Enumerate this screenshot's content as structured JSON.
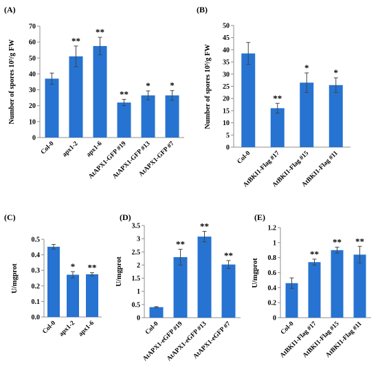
{
  "figure": {
    "bar_color": "#2673d1",
    "axis_color": "#8c8c8c",
    "error_color": "#444444"
  },
  "chart_data": [
    {
      "label": "(A)",
      "type": "bar",
      "ylabel": "Number of spores 10⁵/g FW",
      "ylim": [
        0,
        70
      ],
      "yticks": [
        0,
        10,
        20,
        30,
        40,
        50,
        60,
        70
      ],
      "tick_decimals": 0,
      "categories": [
        "Col-0",
        "apx1-2",
        "apx1-6",
        "AtAPX1-GFP #19",
        "AtAPX1-GFP #13",
        "AtAPX1-GFP #7"
      ],
      "values": [
        37,
        51,
        57.5,
        22,
        26.5,
        26.5
      ],
      "errors": [
        3.5,
        6.5,
        5.5,
        2.0,
        2.8,
        3.0
      ],
      "significance": [
        "",
        "**",
        "**",
        "**",
        "*",
        "*"
      ]
    },
    {
      "label": "(B)",
      "type": "bar",
      "ylabel": "Number of spores 10⁵/g FW",
      "ylim": [
        0,
        50
      ],
      "yticks": [
        0,
        5,
        10,
        15,
        20,
        25,
        30,
        35,
        40,
        45,
        50
      ],
      "tick_decimals": 0,
      "categories": [
        "Col-0",
        "AtBKI1-Flag #17",
        "AtBKI1-Flag #15",
        "AtBKI1-Flag #11"
      ],
      "values": [
        38.5,
        16,
        26.5,
        25.5
      ],
      "errors": [
        4.5,
        2.0,
        4.0,
        3.0
      ],
      "significance": [
        "",
        "**",
        "*",
        "*"
      ]
    },
    {
      "label": "(C)",
      "type": "bar",
      "ylabel": "U/mgprot",
      "ylim": [
        0,
        0.5
      ],
      "yticks": [
        0,
        0.1,
        0.2,
        0.3,
        0.4,
        0.5
      ],
      "tick_decimals": 1,
      "categories": [
        "Col-0",
        "apx1-2",
        "apx1-6"
      ],
      "values": [
        0.452,
        0.272,
        0.275
      ],
      "errors": [
        0.015,
        0.02,
        0.01
      ],
      "significance": [
        "",
        "*",
        "**"
      ]
    },
    {
      "label": "(D)",
      "type": "bar",
      "ylabel": "U/mgprot",
      "ylim": [
        0,
        3.5
      ],
      "yticks": [
        0,
        0.5,
        1,
        1.5,
        2,
        2.5,
        3,
        3.5
      ],
      "tick_decimals": null,
      "categories": [
        "Col-0",
        "AtAPX1-eGFP #19",
        "AtAPX1-eGFP #13",
        "AtAPX1-eGFP #7"
      ],
      "values": [
        0.4,
        2.3,
        3.08,
        2.02
      ],
      "errors": [
        0.02,
        0.3,
        0.2,
        0.15
      ],
      "significance": [
        "",
        "**",
        "**",
        "**"
      ]
    },
    {
      "label": "(E)",
      "type": "bar",
      "ylabel": "U/mgprot",
      "ylim": [
        0,
        1.2
      ],
      "yticks": [
        0,
        0.2,
        0.4,
        0.6,
        0.8,
        1,
        1.2
      ],
      "tick_decimals": null,
      "categories": [
        "Col-0",
        "AtBKI1-Flag #17",
        "AtBKI1-Flag #15",
        "AtBKI1-Flag #11"
      ],
      "values": [
        0.46,
        0.74,
        0.9,
        0.84
      ],
      "errors": [
        0.07,
        0.04,
        0.04,
        0.11
      ],
      "significance": [
        "",
        "**",
        "**",
        "**"
      ]
    }
  ]
}
